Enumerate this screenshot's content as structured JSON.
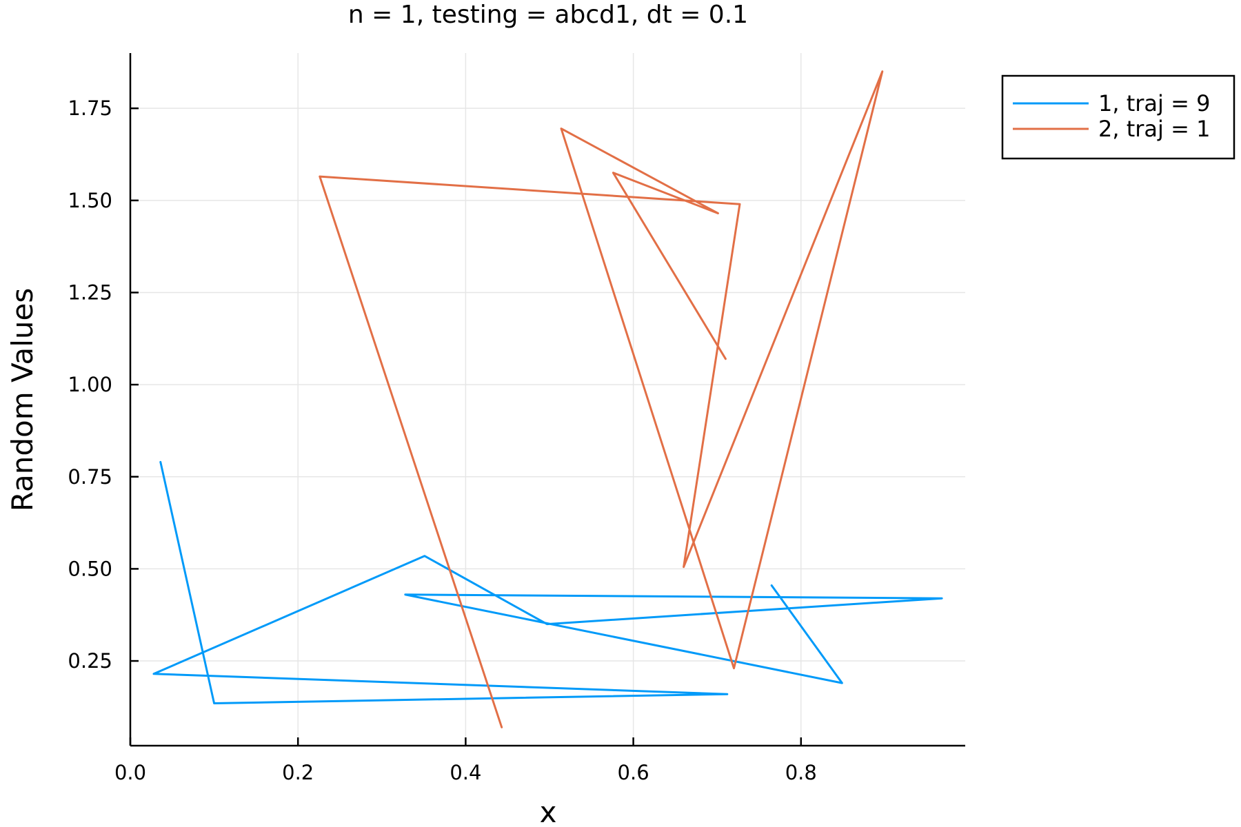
{
  "chart_data": {
    "type": "line",
    "title": "n = 1, testing = abcd1, dt = 0.1",
    "xlabel": "x",
    "ylabel": "Random Values",
    "xlim": [
      0.0,
      1.0
    ],
    "ylim": [
      0.02,
      1.9
    ],
    "xticks": [
      "0.0",
      "0.2",
      "0.4",
      "0.6",
      "0.8"
    ],
    "xtick_values": [
      0.0,
      0.2,
      0.4,
      0.6,
      0.8
    ],
    "yticks": [
      "0.25",
      "0.50",
      "0.75",
      "1.00",
      "1.25",
      "1.50",
      "1.75"
    ],
    "ytick_values": [
      0.25,
      0.5,
      0.75,
      1.0,
      1.25,
      1.5,
      1.75
    ],
    "grid": true,
    "legend_position": "top-right outside",
    "series": [
      {
        "name": "1, traj = 9",
        "color": "#009af9",
        "x": [
          0.036,
          0.1,
          0.712,
          0.028,
          0.351,
          0.497,
          0.968,
          0.328,
          0.849,
          0.765
        ],
        "y": [
          0.79,
          0.135,
          0.16,
          0.215,
          0.535,
          0.35,
          0.42,
          0.43,
          0.19,
          0.455
        ]
      },
      {
        "name": "2, traj = 1",
        "color": "#e26f46",
        "x": [
          0.443,
          0.226,
          0.727,
          0.66,
          0.897,
          0.72,
          0.514,
          0.701,
          0.576,
          0.71
        ],
        "y": [
          0.07,
          1.565,
          1.49,
          0.505,
          1.85,
          0.23,
          1.695,
          1.465,
          1.575,
          1.07
        ]
      }
    ]
  }
}
